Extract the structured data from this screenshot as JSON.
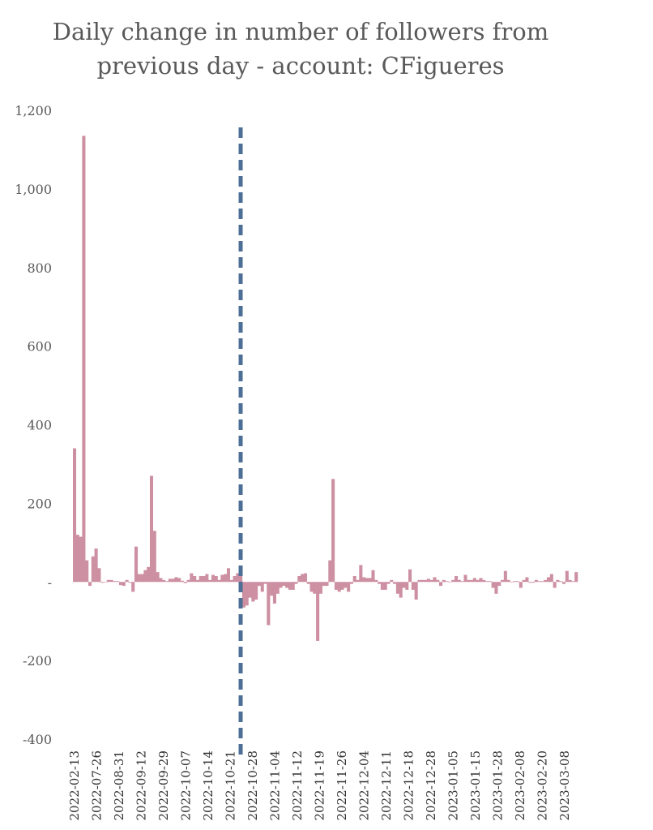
{
  "chart_data": {
    "type": "bar",
    "title_lines": [
      "Daily change in number of followers from",
      "previous day - account: CFigueres"
    ],
    "xlabel": "",
    "ylabel": "",
    "ylim": [
      -400,
      1200
    ],
    "yticks": [
      {
        "value": 1200,
        "label": "1,200"
      },
      {
        "value": 1000,
        "label": "1,000"
      },
      {
        "value": 800,
        "label": "800"
      },
      {
        "value": 600,
        "label": "600"
      },
      {
        "value": 400,
        "label": "400"
      },
      {
        "value": 200,
        "label": "200"
      },
      {
        "value": 0,
        "label": "-"
      },
      {
        "value": -200,
        "label": "-200"
      },
      {
        "value": -400,
        "label": "-400"
      }
    ],
    "xtick_labels": [
      "2022-02-13",
      "2022-07-26",
      "2022-08-31",
      "2022-09-12",
      "2022-09-29",
      "2022-10-07",
      "2022-10-14",
      "2022-10-21",
      "2022-10-28",
      "2022-11-04",
      "2022-11-12",
      "2022-11-19",
      "2022-11-26",
      "2022-12-04",
      "2022-12-11",
      "2022-12-18",
      "2022-12-28",
      "2023-01-05",
      "2023-01-15",
      "2023-01-28",
      "2023-02-08",
      "2023-02-20",
      "2023-03-08"
    ],
    "series": [
      {
        "color": "#cd8fa2",
        "values": [
          340,
          120,
          115,
          1135,
          55,
          -10,
          65,
          85,
          35,
          -2,
          0,
          5,
          5,
          2,
          2,
          -8,
          -10,
          5,
          -2,
          -25,
          90,
          20,
          20,
          30,
          38,
          270,
          130,
          25,
          10,
          5,
          2,
          8,
          8,
          12,
          10,
          3,
          -3,
          5,
          22,
          15,
          5,
          15,
          15,
          20,
          5,
          18,
          15,
          5,
          18,
          20,
          35,
          5,
          15,
          22,
          32,
          -65,
          -60,
          -40,
          -50,
          -45,
          -10,
          -25,
          -5,
          -110,
          -35,
          -55,
          -30,
          -15,
          -10,
          -15,
          -20,
          -20,
          -5,
          15,
          20,
          22,
          -5,
          -25,
          -30,
          -150,
          -30,
          -10,
          -10,
          55,
          262,
          -20,
          -25,
          -20,
          -15,
          -25,
          -5,
          15,
          5,
          43,
          12,
          10,
          10,
          30,
          5,
          -5,
          -20,
          -20,
          -5,
          5,
          -5,
          -30,
          -40,
          -15,
          -20,
          32,
          -20,
          -45,
          5,
          5,
          5,
          8,
          5,
          12,
          5,
          -10,
          5,
          2,
          0,
          5,
          15,
          5,
          2,
          18,
          5,
          5,
          10,
          5,
          10,
          5,
          2,
          2,
          -15,
          -30,
          -10,
          5,
          28,
          5,
          0,
          2,
          2,
          -15,
          5,
          12,
          -2,
          -2,
          5,
          2,
          2,
          5,
          12,
          20,
          -15,
          5,
          2,
          -5,
          28,
          5,
          2,
          25
        ],
        "marker": {
          "index": 55,
          "label": "",
          "color": "#4d6f96"
        }
      }
    ],
    "grid": false,
    "legend": "none"
  }
}
